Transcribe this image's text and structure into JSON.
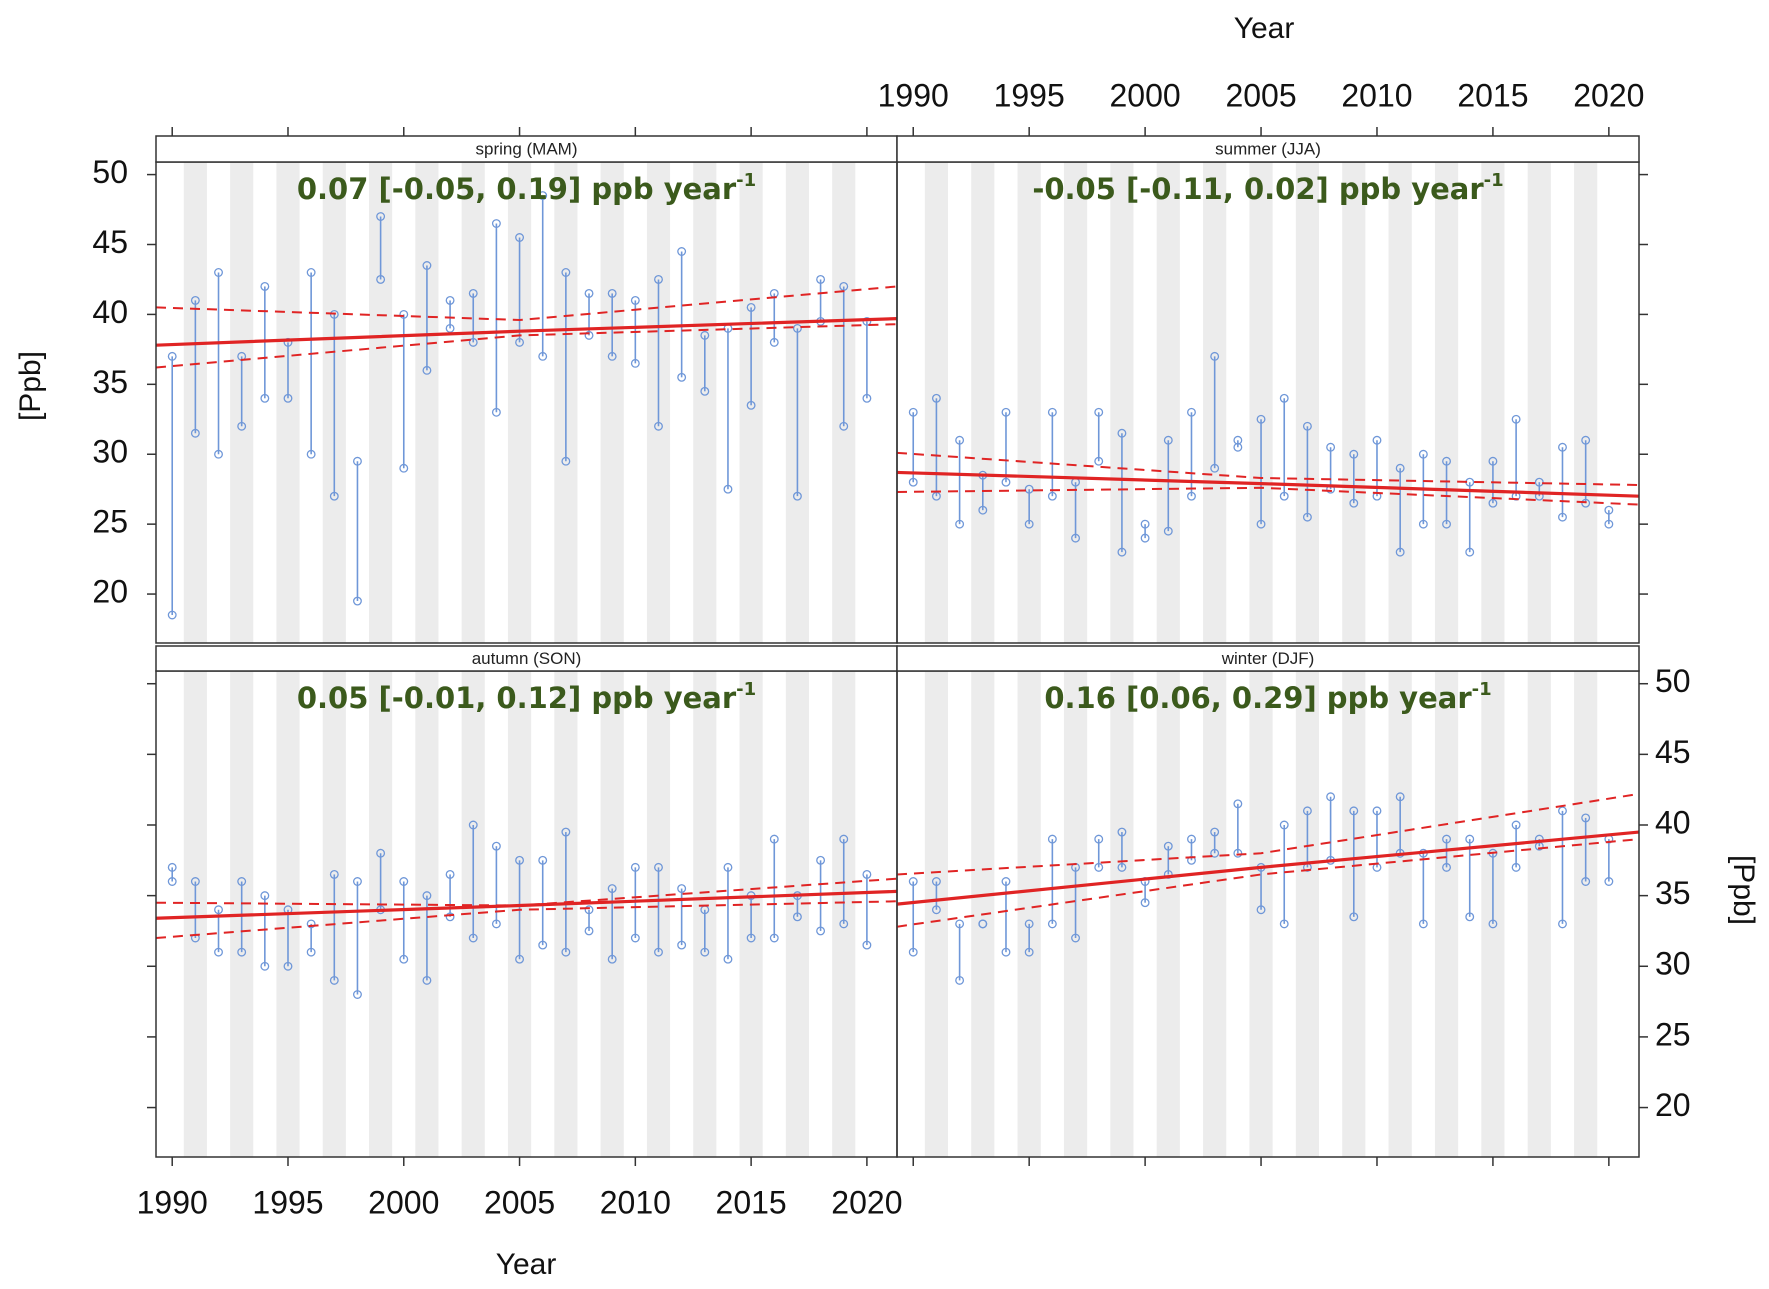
{
  "chart_data": [
    {
      "type": "range",
      "strip": "spring (MAM)",
      "annotation": {
        "text": "0.07 [-0.05, 0.19]  ppb year",
        "superscript": "-1"
      },
      "y_label": "[Ppb]",
      "x": [
        1990,
        1991,
        1992,
        1993,
        1994,
        1995,
        1996,
        1997,
        1998,
        1999,
        2000,
        2001,
        2002,
        2003,
        2004,
        2005,
        2006,
        2007,
        2008,
        2009,
        2010,
        2011,
        2012,
        2013,
        2014,
        2015,
        2016,
        2017,
        2018,
        2019,
        2020
      ],
      "low": [
        18.5,
        31.5,
        30,
        32,
        34,
        34,
        30,
        27,
        19.5,
        42.5,
        29,
        36,
        39,
        38,
        33,
        38,
        37,
        29.5,
        38.5,
        37,
        36.5,
        32,
        35.5,
        34.5,
        27.5,
        33.5,
        38,
        27,
        39.5,
        32,
        34
      ],
      "high": [
        37,
        41,
        43,
        37,
        42,
        38,
        43,
        40,
        29.5,
        47,
        40,
        43.5,
        41,
        41.5,
        46.5,
        45.5,
        48.5,
        43,
        41.5,
        41.5,
        41,
        42.5,
        44.5,
        38.5,
        39,
        40.5,
        41.5,
        39,
        42.5,
        42,
        39.5
      ],
      "color": "#6f97d8",
      "trend": {
        "x": [
          1989.3,
          2005,
          2021.3
        ],
        "values": [
          37.8,
          38.8,
          39.7
        ],
        "lower": [
          36.2,
          38.5,
          39.3
        ],
        "upper": [
          40.5,
          39.6,
          42.0
        ],
        "color": "#e02424"
      },
      "xlim": [
        1989.3,
        2021.3
      ],
      "ylim": [
        16.5,
        50.9
      ],
      "yticks": [
        20,
        25,
        30,
        35,
        40,
        45,
        50
      ]
    },
    {
      "type": "range",
      "strip": "summer (JJA)",
      "annotation": {
        "text": "-0.05 [-0.11, 0.02] ppb year",
        "superscript": "-1"
      },
      "x_label": "Year",
      "x": [
        1990,
        1991,
        1992,
        1993,
        1994,
        1995,
        1996,
        1997,
        1998,
        1999,
        2000,
        2001,
        2002,
        2003,
        2004,
        2005,
        2006,
        2007,
        2008,
        2009,
        2010,
        2011,
        2012,
        2013,
        2014,
        2015,
        2016,
        2017,
        2018,
        2019,
        2020
      ],
      "low": [
        28,
        27,
        25,
        26,
        28,
        25,
        27,
        24,
        29.5,
        23,
        24,
        24.5,
        27,
        29,
        30.5,
        25,
        27,
        25.5,
        27.5,
        26.5,
        27,
        23,
        25,
        25,
        23,
        26.5,
        27,
        27,
        25.5,
        26.5,
        25
      ],
      "high": [
        33,
        34,
        31,
        28.5,
        33,
        27.5,
        33,
        28,
        33,
        31.5,
        25,
        31,
        33,
        37,
        31,
        32.5,
        34,
        32,
        30.5,
        30,
        31,
        29,
        30,
        29.5,
        28,
        29.5,
        32.5,
        28,
        30.5,
        31,
        26
      ],
      "color": "#6f97d8",
      "trend": {
        "x": [
          1989.3,
          2005,
          2021.3
        ],
        "values": [
          28.7,
          27.9,
          27.0
        ],
        "lower": [
          27.3,
          27.6,
          26.4
        ],
        "upper": [
          30.1,
          28.3,
          27.8
        ],
        "color": "#e02424"
      },
      "xlim": [
        1989.3,
        2021.3
      ],
      "ylim": [
        16.5,
        50.9
      ],
      "xticks": [
        1990,
        1995,
        2000,
        2005,
        2010,
        2015,
        2020
      ]
    },
    {
      "type": "range",
      "strip": "autumn (SON)",
      "annotation": {
        "text": "0.05 [-0.01, 0.12] ppb year",
        "superscript": "-1"
      },
      "x_label": "Year",
      "x": [
        1990,
        1991,
        1992,
        1993,
        1994,
        1995,
        1996,
        1997,
        1998,
        1999,
        2000,
        2001,
        2002,
        2003,
        2004,
        2005,
        2006,
        2007,
        2008,
        2009,
        2010,
        2011,
        2012,
        2013,
        2014,
        2015,
        2016,
        2017,
        2018,
        2019,
        2020
      ],
      "low": [
        36,
        32,
        31,
        31,
        30,
        30,
        31,
        29,
        28,
        34,
        30.5,
        29,
        33.5,
        32,
        33,
        30.5,
        31.5,
        31,
        32.5,
        30.5,
        32,
        31,
        31.5,
        31,
        30.5,
        32,
        32,
        33.5,
        32.5,
        33,
        31.5
      ],
      "high": [
        37,
        36,
        34,
        36,
        35,
        34,
        33,
        36.5,
        36,
        38,
        36,
        35,
        36.5,
        40,
        38.5,
        37.5,
        37.5,
        39.5,
        34,
        35.5,
        37,
        37,
        35.5,
        34,
        37,
        35,
        39,
        35,
        37.5,
        39,
        36.5
      ],
      "color": "#6f97d8",
      "trend": {
        "x": [
          1989.3,
          2005,
          2021.3
        ],
        "values": [
          33.4,
          34.3,
          35.3
        ],
        "lower": [
          32.0,
          34.0,
          34.6
        ],
        "upper": [
          34.5,
          34.3,
          36.2
        ],
        "color": "#e02424"
      },
      "xlim": [
        1989.3,
        2021.3
      ],
      "ylim": [
        16.5,
        50.9
      ],
      "xticks": [
        1990,
        1995,
        2000,
        2005,
        2010,
        2015,
        2020
      ]
    },
    {
      "type": "range",
      "strip": "winter (DJF)",
      "annotation": {
        "text": "0.16 [0.06, 0.29] ppb year",
        "superscript": "-1"
      },
      "y_label": "[Ppb]",
      "x": [
        1990,
        1991,
        1992,
        1993,
        1994,
        1995,
        1996,
        1997,
        1998,
        1999,
        2000,
        2001,
        2002,
        2003,
        2004,
        2005,
        2006,
        2007,
        2008,
        2009,
        2010,
        2011,
        2012,
        2013,
        2014,
        2015,
        2016,
        2017,
        2018,
        2019,
        2020
      ],
      "low": [
        31,
        34,
        29,
        33,
        31,
        31,
        33,
        32,
        37,
        37,
        34.5,
        36.5,
        37.5,
        38,
        38,
        34,
        33,
        37,
        37.5,
        33.5,
        37,
        38,
        33,
        37,
        33.5,
        33,
        37,
        38.5,
        33,
        36,
        36
      ],
      "high": [
        36,
        36,
        33,
        33,
        36,
        33,
        39,
        37,
        39,
        39.5,
        36,
        38.5,
        39,
        39.5,
        41.5,
        37,
        40,
        41,
        42,
        41,
        41,
        42,
        38,
        39,
        39,
        38,
        40,
        39,
        41,
        40.5,
        39
      ],
      "color": "#6f97d8",
      "trend": {
        "x": [
          1989.3,
          2005,
          2021.3
        ],
        "values": [
          34.4,
          37.0,
          39.5
        ],
        "lower": [
          32.8,
          36.5,
          39.0
        ],
        "upper": [
          36.5,
          38.0,
          42.2
        ],
        "color": "#e02424"
      },
      "xlim": [
        1989.3,
        2021.3
      ],
      "ylim": [
        16.5,
        50.9
      ],
      "yticks": [
        20,
        25,
        30,
        35,
        40,
        45,
        50
      ]
    }
  ]
}
